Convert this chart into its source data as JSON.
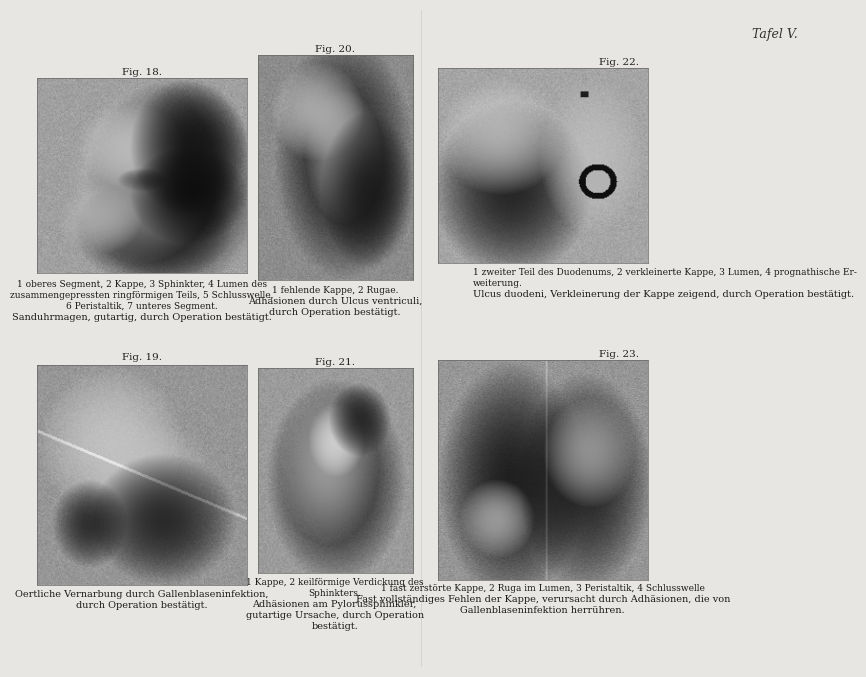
{
  "page_bg": "#e8e6e2",
  "title": "Tafel V.",
  "figures": {
    "18": {
      "label": "Fig. 18.",
      "caption_lines": [
        "1 oberes Segment, 2 Kappe, 3 Sphinkter, 4 Lumen des",
        "zusammengepressten ringförmigen Teils, 5 Schlusswelle,",
        "6 Peristaltik, 7 unteres Segment.",
        "Sanduhrmagen, gutartig, durch Operation bestätigt."
      ],
      "caption_bold_last": 1
    },
    "20": {
      "label": "Fig. 20.",
      "caption_lines": [
        "1 fehlende Kappe, 2 Rugae.",
        "Adhäsionen durch Ulcus ventriculi,",
        "durch Operation bestätigt."
      ],
      "caption_bold_last": 2
    },
    "22": {
      "label": "Fig. 22.",
      "caption_lines": [
        "1 zweiter Teil des Duodenums, 2 verkleinerte Kappe, 3 Lumen, 4 prognathische Er-",
        "weiterung.",
        "Ulcus duodeni, Verkleinerung der Kappe zeigend, durch Operation bestätigt."
      ],
      "caption_bold_last": 1
    },
    "19": {
      "label": "Fig. 19.",
      "caption_lines": [
        "Oertliche Vernarbung durch Gallenblaseninfektion,",
        "durch Operation bestätigt."
      ],
      "caption_bold_last": 2
    },
    "21": {
      "label": "Fig. 21.",
      "caption_lines": [
        "1 Kappe, 2 keilförmige Verdickung des",
        "Sphinkters.",
        "Adhäsionen am Pylorussphinkler,",
        "gutartige Ursache, durch Operation",
        "bestätigt."
      ],
      "caption_bold_last": 3
    },
    "23": {
      "label": "Fig. 23.",
      "caption_lines": [
        "1 fast zerstörte Kappe, 2 Ruga im Lumen, 3 Peristaltik, 4 Schlusswelle",
        "Fast vollständiges Fehlen der Kappe, verursacht durch Adhäsionen, die von",
        "Gallenblaseninfektion herrühren."
      ],
      "caption_bold_last": 2
    }
  }
}
